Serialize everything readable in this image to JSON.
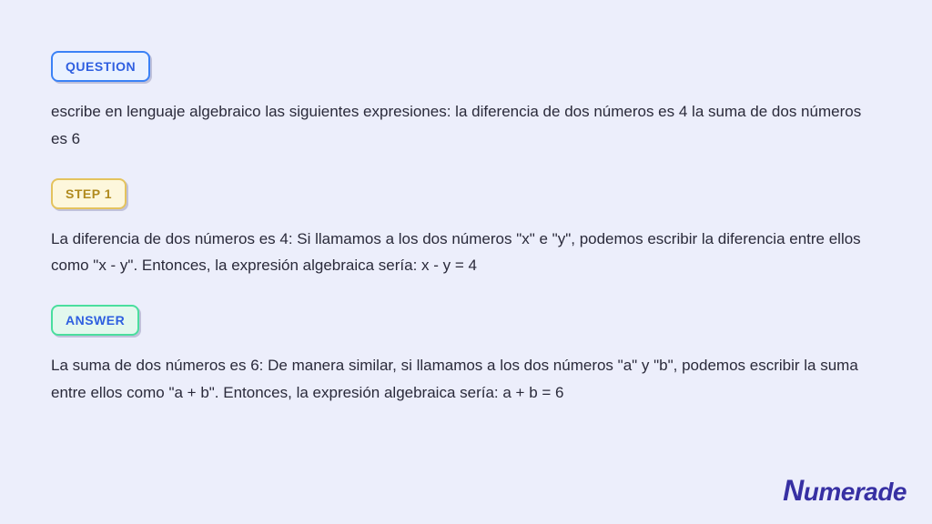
{
  "question": {
    "badge": "QUESTION",
    "text": "escribe en lenguaje algebraico las siguientes expresiones: la diferencia de dos números es 4 la suma de dos números es 6"
  },
  "step1": {
    "badge": "STEP 1",
    "text": "La diferencia de dos números es 4: Si llamamos a los dos números \"x\" e \"y\", podemos escribir la diferencia entre ellos como \"x - y\". Entonces, la expresión algebraica sería: x - y = 4"
  },
  "answer": {
    "badge": "ANSWER",
    "text": "La suma de dos números es 6: De manera similar, si llamamos a los dos números \"a\" y \"b\", podemos escribir la suma entre ellos como \"a + b\". Entonces, la expresión algebraica sería: a + b = 6"
  },
  "brand": "Numerade",
  "styling": {
    "page_background": "#eceefb",
    "text_color": "#2a2a3a",
    "body_fontsize": 17,
    "badge_fontsize": 14,
    "badges": {
      "question": {
        "bg": "#eaf2ff",
        "border": "#3b82f6",
        "text": "#2f5fe0"
      },
      "step": {
        "bg": "#fdf7dc",
        "border": "#e4c35e",
        "text": "#b08a1e"
      },
      "answer": {
        "bg": "#e2f8ed",
        "border": "#4ade9e",
        "text": "#2f5fe0"
      }
    },
    "logo_color": "#3730a3"
  }
}
